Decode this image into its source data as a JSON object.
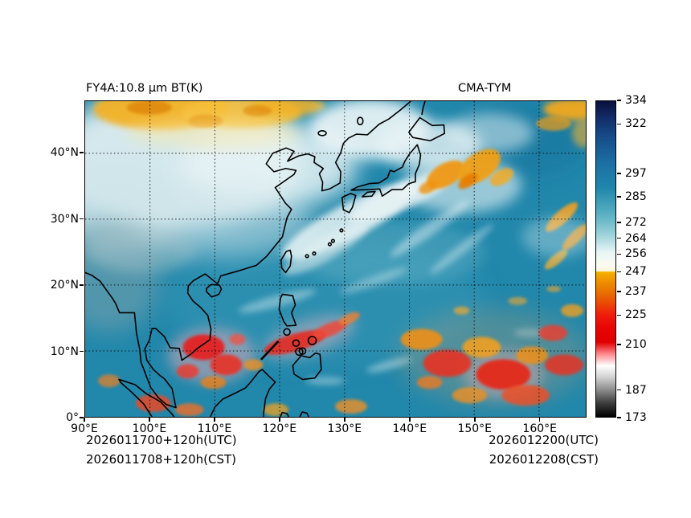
{
  "titles": {
    "left": "FY4A:10.8 μm BT(K)",
    "right": "CMA-TYM"
  },
  "map": {
    "lon_min": 90,
    "lon_max": 167.2,
    "lat_min": 0,
    "lat_max": 47.9
  },
  "axes": {
    "x_ticks": [
      {
        "label": "90°E",
        "value": 90
      },
      {
        "label": "100°E",
        "value": 100
      },
      {
        "label": "110°E",
        "value": 110
      },
      {
        "label": "120°E",
        "value": 120
      },
      {
        "label": "130°E",
        "value": 130
      },
      {
        "label": "140°E",
        "value": 140
      },
      {
        "label": "150°E",
        "value": 150
      },
      {
        "label": "160°E",
        "value": 160
      }
    ],
    "y_ticks": [
      {
        "label": "40°N",
        "value": 40
      },
      {
        "label": "30°N",
        "value": 30
      },
      {
        "label": "20°N",
        "value": 20
      },
      {
        "label": "10°N",
        "value": 10
      },
      {
        "label": "0°",
        "value": 0
      }
    ]
  },
  "colorbar": {
    "min": 173,
    "max": 334,
    "unit": "K",
    "tick_values": [
      334,
      322,
      297,
      285,
      272,
      264,
      256,
      247,
      237,
      225,
      210,
      187,
      173
    ],
    "gradient_stops": [
      {
        "value": 334,
        "color": "#0a0f3c"
      },
      {
        "value": 326,
        "color": "#122a66"
      },
      {
        "value": 315,
        "color": "#174e8b"
      },
      {
        "value": 303,
        "color": "#1c6ea3"
      },
      {
        "value": 290,
        "color": "#1f86ab"
      },
      {
        "value": 278,
        "color": "#52abbf"
      },
      {
        "value": 272,
        "color": "#74bdcb"
      },
      {
        "value": 264,
        "color": "#abd9df"
      },
      {
        "value": 257,
        "color": "#e8f5f5"
      },
      {
        "value": 250,
        "color": "#fbfbf0"
      },
      {
        "value": 247.2,
        "color": "#fdf6d8"
      },
      {
        "value": 247,
        "color": "#f3b300"
      },
      {
        "value": 242,
        "color": "#f09000"
      },
      {
        "value": 237,
        "color": "#e87300"
      },
      {
        "value": 231,
        "color": "#ea4a04"
      },
      {
        "value": 225,
        "color": "#ef1c0c"
      },
      {
        "value": 218,
        "color": "#e60404"
      },
      {
        "value": 211,
        "color": "#e00000"
      },
      {
        "value": 205,
        "color": "#ff8a8e"
      },
      {
        "value": 199,
        "color": "#ffffff"
      },
      {
        "value": 193,
        "color": "#cfcfcf"
      },
      {
        "value": 187,
        "color": "#8f8f8f"
      },
      {
        "value": 180,
        "color": "#3d3d3d"
      },
      {
        "value": 173,
        "color": "#000000"
      }
    ]
  },
  "footer": {
    "left_lines": [
      "2026011700+120h(UTC)",
      "2026011708+120h(CST)"
    ],
    "right_lines": [
      "2026012200(UTC)",
      "2026012208(CST)"
    ]
  },
  "colors": {
    "ocean_teal": "#2187ab",
    "coastline": "#000000",
    "grid": "#000000",
    "background": "#ffffff"
  }
}
